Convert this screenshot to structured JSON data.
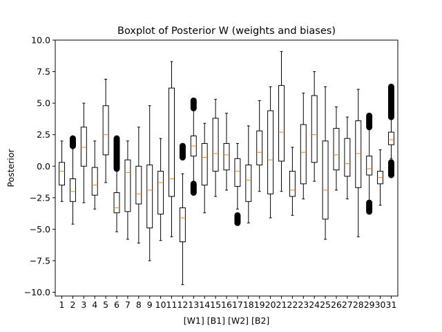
{
  "chart_data": {
    "type": "boxplot",
    "title": "Boxplot of Posterior W (weights and biases)",
    "xlabel": "[W1] [B1] [W2] [B2]",
    "ylabel": "Posterior",
    "ylim": [
      -10.3,
      10.0
    ],
    "yticks": [
      10.0,
      7.5,
      5.0,
      2.5,
      0.0,
      -2.5,
      -5.0,
      -7.5,
      -10.0
    ],
    "ytick_labels": [
      "10.0",
      "7.5",
      "5.0",
      "2.5",
      "0.0",
      "−2.5",
      "−5.0",
      "−7.5",
      "−10.0"
    ],
    "categories": [
      "1",
      "2",
      "3",
      "4",
      "5",
      "6",
      "7",
      "8",
      "9",
      "10",
      "11",
      "12",
      "13",
      "14",
      "15",
      "16",
      "17",
      "18",
      "19",
      "20",
      "21",
      "22",
      "23",
      "24",
      "25",
      "26",
      "27",
      "28",
      "29",
      "30",
      "31"
    ],
    "box_color": "#000000",
    "median_color": "#ff7f0e",
    "grid": false,
    "boxes": [
      {
        "label": "1",
        "whislo": -2.8,
        "q1": -1.5,
        "median": -0.4,
        "q3": 0.3,
        "whishi": 2.0,
        "fliers": []
      },
      {
        "label": "2",
        "whislo": -4.6,
        "q1": -2.8,
        "median": -2.0,
        "q3": -1.0,
        "whishi": 1.4,
        "fliers": [
          {
            "lo": 1.6,
            "hi": 2.2
          }
        ]
      },
      {
        "label": "3",
        "whislo": -2.9,
        "q1": 0.0,
        "median": 1.5,
        "q3": 3.1,
        "whishi": 5.0,
        "fliers": []
      },
      {
        "label": "4",
        "whislo": -3.4,
        "q1": -2.3,
        "median": -1.5,
        "q3": -0.1,
        "whishi": 2.0,
        "fliers": []
      },
      {
        "label": "5",
        "whislo": -1.3,
        "q1": 0.9,
        "median": 2.5,
        "q3": 4.8,
        "whishi": 6.9,
        "fliers": []
      },
      {
        "label": "6",
        "whislo": -5.2,
        "q1": -3.7,
        "median": -3.3,
        "q3": -2.1,
        "whishi": -0.3,
        "fliers": [
          {
            "lo": -0.2,
            "hi": 2.2
          }
        ]
      },
      {
        "label": "7",
        "whislo": -5.8,
        "q1": -3.6,
        "median": -0.5,
        "q3": 0.5,
        "whishi": 2.0,
        "fliers": []
      },
      {
        "label": "8",
        "whislo": -6.1,
        "q1": -3.0,
        "median": -2.2,
        "q3": 0.0,
        "whishi": 3.1,
        "fliers": []
      },
      {
        "label": "9",
        "whislo": -7.5,
        "q1": -4.9,
        "median": -1.9,
        "q3": 0.1,
        "whishi": 4.8,
        "fliers": []
      },
      {
        "label": "10",
        "whislo": -5.9,
        "q1": -3.8,
        "median": -1.3,
        "q3": -0.4,
        "whishi": 2.2,
        "fliers": []
      },
      {
        "label": "11",
        "whislo": -5.6,
        "q1": -2.4,
        "median": -1.0,
        "q3": 6.2,
        "whishi": 8.3,
        "fliers": []
      },
      {
        "label": "12",
        "whislo": -9.4,
        "q1": -6.0,
        "median": -4.1,
        "q3": -3.3,
        "whishi": -0.6,
        "fliers": [
          {
            "lo": 0.7,
            "hi": 1.6
          }
        ]
      },
      {
        "label": "13",
        "whislo": -1.2,
        "q1": 0.8,
        "median": 1.6,
        "q3": 2.4,
        "whishi": 4.5,
        "fliers": [
          {
            "lo": 4.6,
            "hi": 5.2
          },
          {
            "lo": -2.1,
            "hi": -1.4
          }
        ]
      },
      {
        "label": "14",
        "whislo": -3.7,
        "q1": -1.5,
        "median": 0.7,
        "q3": 1.8,
        "whishi": 3.4,
        "fliers": []
      },
      {
        "label": "15",
        "whislo": -2.4,
        "q1": -0.4,
        "median": 1.0,
        "q3": 3.8,
        "whishi": 5.3,
        "fliers": []
      },
      {
        "label": "16",
        "whislo": -1.9,
        "q1": -0.3,
        "median": 0.9,
        "q3": 1.8,
        "whishi": 4.2,
        "fliers": []
      },
      {
        "label": "17",
        "whislo": -3.4,
        "q1": -1.6,
        "median": -0.4,
        "q3": 0.6,
        "whishi": 1.8,
        "fliers": [
          {
            "lo": -4.5,
            "hi": -3.9
          }
        ]
      },
      {
        "label": "18",
        "whislo": -4.5,
        "q1": -2.8,
        "median": -1.1,
        "q3": 0.1,
        "whishi": 3.2,
        "fliers": []
      },
      {
        "label": "19",
        "whislo": -2.0,
        "q1": 0.1,
        "median": 1.1,
        "q3": 2.8,
        "whishi": 5.2,
        "fliers": []
      },
      {
        "label": "20",
        "whislo": -4.1,
        "q1": -2.2,
        "median": 0.5,
        "q3": 4.4,
        "whishi": 6.3,
        "fliers": []
      },
      {
        "label": "21",
        "whislo": -2.0,
        "q1": 0.4,
        "median": 2.7,
        "q3": 6.4,
        "whishi": 9.1,
        "fliers": []
      },
      {
        "label": "22",
        "whislo": -3.9,
        "q1": -2.4,
        "median": -1.9,
        "q3": -0.4,
        "whishi": 1.5,
        "fliers": []
      },
      {
        "label": "23",
        "whislo": -2.6,
        "q1": -1.4,
        "median": 1.1,
        "q3": 3.3,
        "whishi": 5.8,
        "fliers": []
      },
      {
        "label": "24",
        "whislo": -1.2,
        "q1": 0.3,
        "median": 2.5,
        "q3": 5.6,
        "whishi": 7.5,
        "fliers": []
      },
      {
        "label": "25",
        "whislo": -5.8,
        "q1": -4.2,
        "median": -1.9,
        "q3": 2.0,
        "whishi": 6.3,
        "fliers": []
      },
      {
        "label": "26",
        "whislo": -1.9,
        "q1": -0.3,
        "median": 0.9,
        "q3": 3.0,
        "whishi": 4.7,
        "fliers": []
      },
      {
        "label": "27",
        "whislo": -2.6,
        "q1": -0.8,
        "median": 0.2,
        "q3": 2.2,
        "whishi": 3.9,
        "fliers": []
      },
      {
        "label": "28",
        "whislo": -5.6,
        "q1": -1.7,
        "median": 1.0,
        "q3": 3.6,
        "whishi": 6.1,
        "fliers": []
      },
      {
        "label": "29",
        "whislo": -2.7,
        "q1": -0.7,
        "median": -0.2,
        "q3": 0.8,
        "whishi": 2.9,
        "fliers": [
          {
            "lo": 3.1,
            "hi": 4.0
          },
          {
            "lo": -3.6,
            "hi": -2.9
          }
        ]
      },
      {
        "label": "30",
        "whislo": -3.1,
        "q1": -1.4,
        "median": -0.9,
        "q3": -0.4,
        "whishi": 1.3,
        "fliers": []
      },
      {
        "label": "31",
        "whislo": 0.6,
        "q1": 1.7,
        "median": 2.1,
        "q3": 2.7,
        "whishi": 3.8,
        "fliers": [
          {
            "lo": 3.9,
            "hi": 6.3
          },
          {
            "lo": -0.7,
            "hi": 0.3
          }
        ]
      }
    ]
  }
}
